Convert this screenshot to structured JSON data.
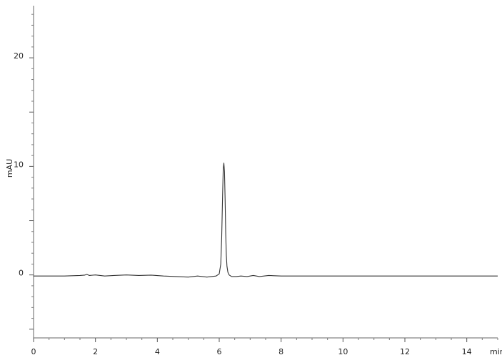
{
  "chart_data": {
    "type": "line",
    "xlabel": "min",
    "ylabel": "mAU",
    "xlim": [
      0,
      15
    ],
    "ylim": [
      -5.8,
      24.8
    ],
    "grid": false,
    "x_ticks": [
      0,
      2,
      4,
      6,
      8,
      10,
      12,
      14
    ],
    "x_tick_labels": [
      "0",
      "2",
      "4",
      "6",
      "8",
      "10",
      "12",
      "14"
    ],
    "y_ticks": [
      0,
      10,
      20
    ],
    "y_tick_labels": [
      "0",
      "10",
      "20"
    ],
    "series": [
      {
        "color": "#333333",
        "x": [
          0,
          0.5,
          1.0,
          1.5,
          1.65,
          1.72,
          1.8,
          2.0,
          2.3,
          2.6,
          3.0,
          3.4,
          3.8,
          4.2,
          4.6,
          5.0,
          5.3,
          5.6,
          5.9,
          6.0,
          6.05,
          6.08,
          6.11,
          6.13,
          6.15,
          6.17,
          6.19,
          6.21,
          6.23,
          6.25,
          6.28,
          6.32,
          6.4,
          6.55,
          6.7,
          6.9,
          7.1,
          7.3,
          7.6,
          8.0,
          8.5,
          9,
          10,
          11,
          12,
          13,
          14,
          15
        ],
        "values": [
          -0.1,
          -0.1,
          -0.1,
          -0.05,
          -0.02,
          0.05,
          -0.05,
          0.0,
          -0.1,
          -0.05,
          0.0,
          -0.05,
          -0.02,
          -0.1,
          -0.15,
          -0.2,
          -0.1,
          -0.2,
          -0.1,
          0.1,
          1.0,
          3.5,
          7.5,
          9.8,
          10.3,
          9.5,
          7.0,
          3.8,
          1.8,
          0.8,
          0.25,
          0.0,
          -0.15,
          -0.15,
          -0.1,
          -0.15,
          -0.05,
          -0.15,
          -0.05,
          -0.1,
          -0.1,
          -0.1,
          -0.1,
          -0.1,
          -0.1,
          -0.1,
          -0.1,
          -0.1
        ]
      }
    ]
  }
}
